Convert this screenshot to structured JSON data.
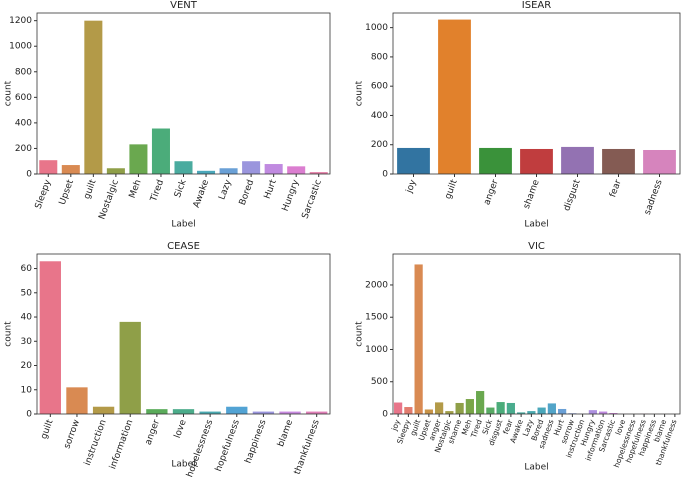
{
  "chart_data": [
    {
      "type": "bar",
      "title": "VENT",
      "xlabel": "Label",
      "ylabel": "count",
      "categories": [
        "Sleepy",
        "Upset",
        "guilt",
        "Nostalgic",
        "Meh",
        "Tired",
        "Sick",
        "Awake",
        "Lazy",
        "Bored",
        "Hurt",
        "Hungry",
        "Sarcastic"
      ],
      "values": [
        108,
        70,
        1200,
        45,
        232,
        356,
        100,
        25,
        45,
        100,
        78,
        60,
        15
      ],
      "colors": [
        "#e8758a",
        "#d98a52",
        "#b39a48",
        "#8f9f48",
        "#6aa84f",
        "#4bac7a",
        "#4aab9f",
        "#4aa7ba",
        "#6aa0d6",
        "#9a95dd",
        "#c08ae0",
        "#db7ed0",
        "#e57fa8"
      ],
      "ylim": [
        0,
        1260
      ],
      "yticks": [
        0,
        200,
        400,
        600,
        800,
        1000,
        1200
      ]
    },
    {
      "type": "bar",
      "title": "ISEAR",
      "xlabel": "Label",
      "ylabel": "count",
      "categories": [
        "joy",
        "guilt",
        "anger",
        "shame",
        "disgust",
        "fear",
        "sadness"
      ],
      "values": [
        178,
        1055,
        178,
        171,
        185,
        171,
        164
      ],
      "colors": [
        "#3274a1",
        "#e1812c",
        "#3a923a",
        "#c03d3e",
        "#9372b2",
        "#845b53",
        "#d684bd"
      ],
      "ylim": [
        0,
        1100
      ],
      "yticks": [
        0,
        200,
        400,
        600,
        800,
        1000
      ]
    },
    {
      "type": "bar",
      "title": "CEASE",
      "xlabel": "Label",
      "ylabel": "count",
      "categories": [
        "guilt",
        "sorrow",
        "instruction",
        "information",
        "anger",
        "love",
        "hopelessness",
        "hopefulness",
        "happiness",
        "blame",
        "thankfulness"
      ],
      "values": [
        63,
        11,
        3,
        38,
        2,
        2,
        1,
        3,
        1,
        1,
        1
      ],
      "colors": [
        "#e8758a",
        "#d98a52",
        "#b39a48",
        "#8f9f48",
        "#5aab5a",
        "#4bac8a",
        "#4aa9b0",
        "#52a3d4",
        "#9a95dd",
        "#c88ae0",
        "#e07fb8"
      ],
      "ylim": [
        0,
        66
      ],
      "yticks": [
        0,
        10,
        20,
        30,
        40,
        50,
        60
      ]
    },
    {
      "type": "bar",
      "title": "VIC",
      "xlabel": "Label",
      "ylabel": "count",
      "categories": [
        "joy",
        "Sleepy",
        "guilt",
        "Upset",
        "anger",
        "Nostalgic",
        "shame",
        "Meh",
        "Tired",
        "Sick",
        "disgust",
        "fear",
        "Awake",
        "Lazy",
        "Bored",
        "sadness",
        "Hurt",
        "sorrow",
        "instruction",
        "Hungry",
        "information",
        "Sarcastic",
        "love",
        "hopelessness",
        "hopefulness",
        "happiness",
        "blame",
        "thankfulness"
      ],
      "values": [
        178,
        108,
        2318,
        70,
        180,
        45,
        171,
        232,
        356,
        100,
        185,
        171,
        25,
        45,
        100,
        164,
        78,
        11,
        3,
        60,
        38,
        15,
        2,
        1,
        3,
        1,
        1,
        1
      ],
      "colors": [
        "#e8758a",
        "#e27c6e",
        "#d98a52",
        "#c99448",
        "#b39a48",
        "#a19e48",
        "#8f9f48",
        "#79a548",
        "#6aa84f",
        "#58aa64",
        "#4bac7a",
        "#4aac8e",
        "#4aab9f",
        "#4aa9ae",
        "#4aa7ba",
        "#52a4c8",
        "#6aa0d6",
        "#8098da",
        "#9a95dd",
        "#ad90df",
        "#c08ae0",
        "#cf84d9",
        "#db7ed0",
        "#e07dbd",
        "#e57fa8",
        "#e67a9c",
        "#e97893",
        "#e8768c"
      ],
      "ylim": [
        0,
        2480
      ],
      "yticks": [
        0,
        500,
        1000,
        1500,
        2000
      ]
    }
  ]
}
